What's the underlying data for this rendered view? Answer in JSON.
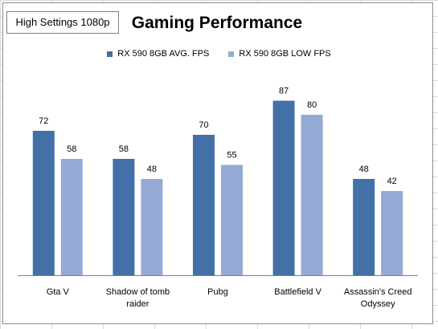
{
  "settings_label": "High Settings 1080p",
  "chart_data": {
    "type": "bar",
    "title": "Gaming Performance",
    "categories": [
      "Gta V",
      "Shadow of tomb raider",
      "Pubg",
      "Battlefield V",
      "Assassin's Creed Odyssey"
    ],
    "series": [
      {
        "name": "RX 590 8GB AVG. FPS",
        "color": "#4470a8",
        "values": [
          72,
          58,
          70,
          87,
          48
        ]
      },
      {
        "name": "RX 590 8GB LOW FPS",
        "color": "#94aad4",
        "values": [
          58,
          48,
          55,
          80,
          42
        ]
      }
    ],
    "ylim": [
      0,
      100
    ],
    "grid": false,
    "legend_position": "top"
  }
}
